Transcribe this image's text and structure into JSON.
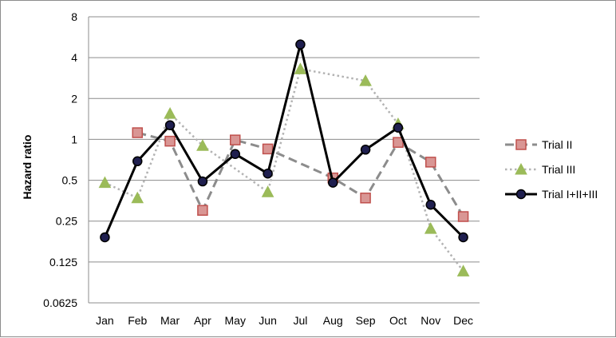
{
  "chart_data": {
    "type": "line",
    "title": "",
    "xlabel": "",
    "ylabel": "Hazard ratio",
    "yscale": "log2",
    "ylim": [
      0.0625,
      8
    ],
    "yticks": [
      "8",
      "4",
      "2",
      "1",
      "0.5",
      "0.25",
      "0.125",
      "0.0625"
    ],
    "grid": true,
    "legend_position": "right",
    "categories": [
      "Jan",
      "Feb",
      "Mar",
      "Apr",
      "May",
      "Jun",
      "Jul",
      "Aug",
      "Sep",
      "Oct",
      "Nov",
      "Dec"
    ],
    "series": [
      {
        "name": "Trial II",
        "style": "dashed",
        "marker": "square",
        "line_color": "#8c8c8c",
        "marker_fill": "#d99694",
        "marker_stroke": "#c0504d",
        "values": [
          null,
          1.12,
          0.97,
          0.3,
          0.99,
          0.85,
          null,
          0.52,
          0.37,
          0.95,
          0.68,
          0.27
        ]
      },
      {
        "name": "Trial III",
        "style": "dotted",
        "marker": "triangle",
        "line_color": "#b3b3b3",
        "marker_fill": "#9bbb59",
        "marker_stroke": "#9bbb59",
        "values": [
          0.48,
          0.37,
          1.55,
          0.9,
          null,
          0.41,
          3.3,
          null,
          2.7,
          1.3,
          0.22,
          0.107
        ]
      },
      {
        "name": "Trial I+II+III",
        "style": "solid",
        "marker": "circle",
        "line_color": "#000000",
        "marker_fill": "#1f1f4f",
        "marker_stroke": "#000000",
        "values": [
          0.19,
          0.69,
          1.27,
          0.49,
          0.78,
          0.56,
          5.0,
          0.48,
          0.84,
          1.22,
          0.33,
          0.19
        ]
      }
    ]
  }
}
